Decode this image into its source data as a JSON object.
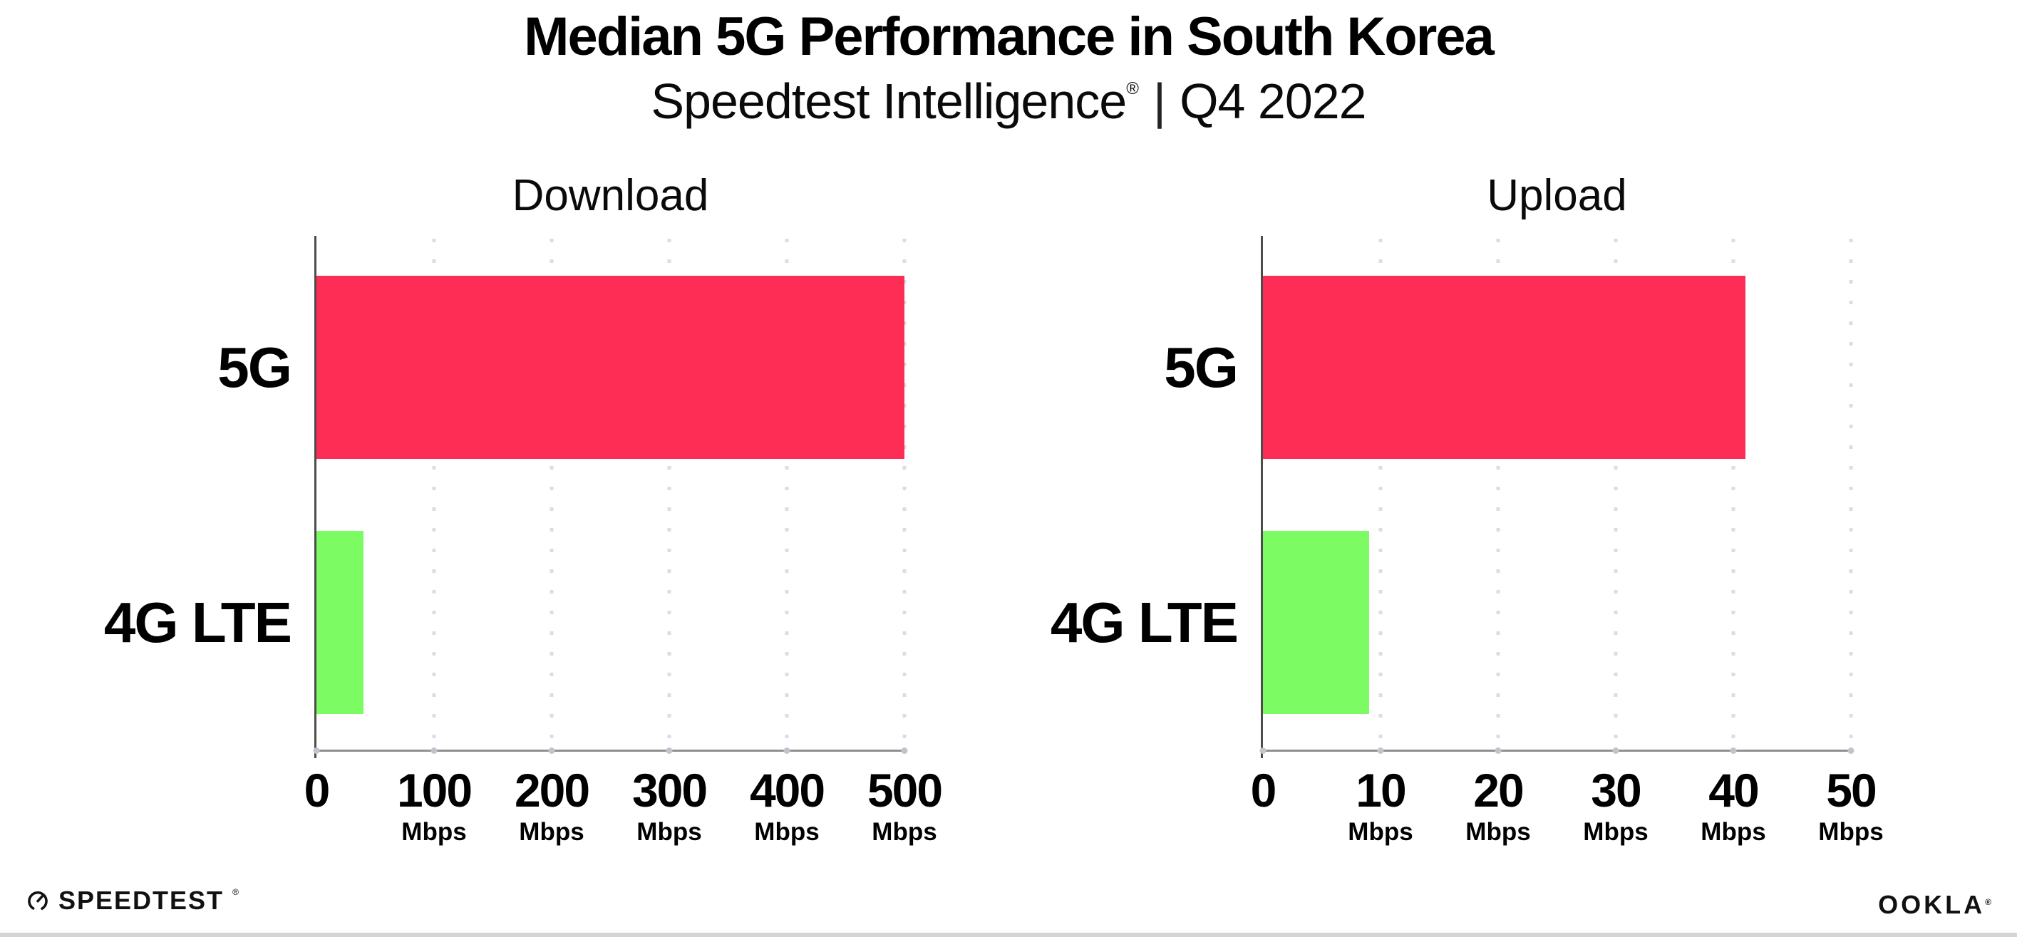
{
  "header": {
    "title": "Median 5G Performance in South Korea",
    "subtitle_brand": "Speedtest Intelligence",
    "subtitle_mark": "®",
    "subtitle_divider": "|",
    "subtitle_period": "Q4 2022"
  },
  "chart_data": [
    {
      "type": "bar",
      "orientation": "horizontal",
      "title": "Download",
      "categories": [
        "5G",
        "4G LTE"
      ],
      "values": [
        500,
        40
      ],
      "unit": "Mbps",
      "xlim": [
        0,
        500
      ],
      "tick_labels": [
        "0",
        "100",
        "200",
        "300",
        "400",
        "500"
      ],
      "bar_colors": [
        "#FD2D55",
        "#7DFB63"
      ],
      "grid": "dotted-vertical-gridlines",
      "legend": "none"
    },
    {
      "type": "bar",
      "orientation": "horizontal",
      "title": "Upload",
      "categories": [
        "5G",
        "4G LTE"
      ],
      "values": [
        41,
        9
      ],
      "unit": "Mbps",
      "xlim": [
        0,
        50
      ],
      "tick_labels": [
        "0",
        "10",
        "20",
        "30",
        "40",
        "50"
      ],
      "bar_colors": [
        "#FD2D55",
        "#7DFB63"
      ],
      "grid": "dotted-vertical-gridlines",
      "legend": "none"
    }
  ],
  "footer": {
    "speedtest_label": "SPEEDTEST",
    "speedtest_mark": "®",
    "ookla_label": "OOKLA",
    "ookla_mark": "®"
  },
  "colors": {
    "bar_5g": "#FD2D55",
    "bar_4g_lte": "#7DFB63",
    "gridline_dot": "#DCDCE6",
    "x_axis": "#8F8F8F",
    "y_axis": "#4C4C4C",
    "bottom_strip": "#D5D5D5",
    "text": "#000000"
  }
}
